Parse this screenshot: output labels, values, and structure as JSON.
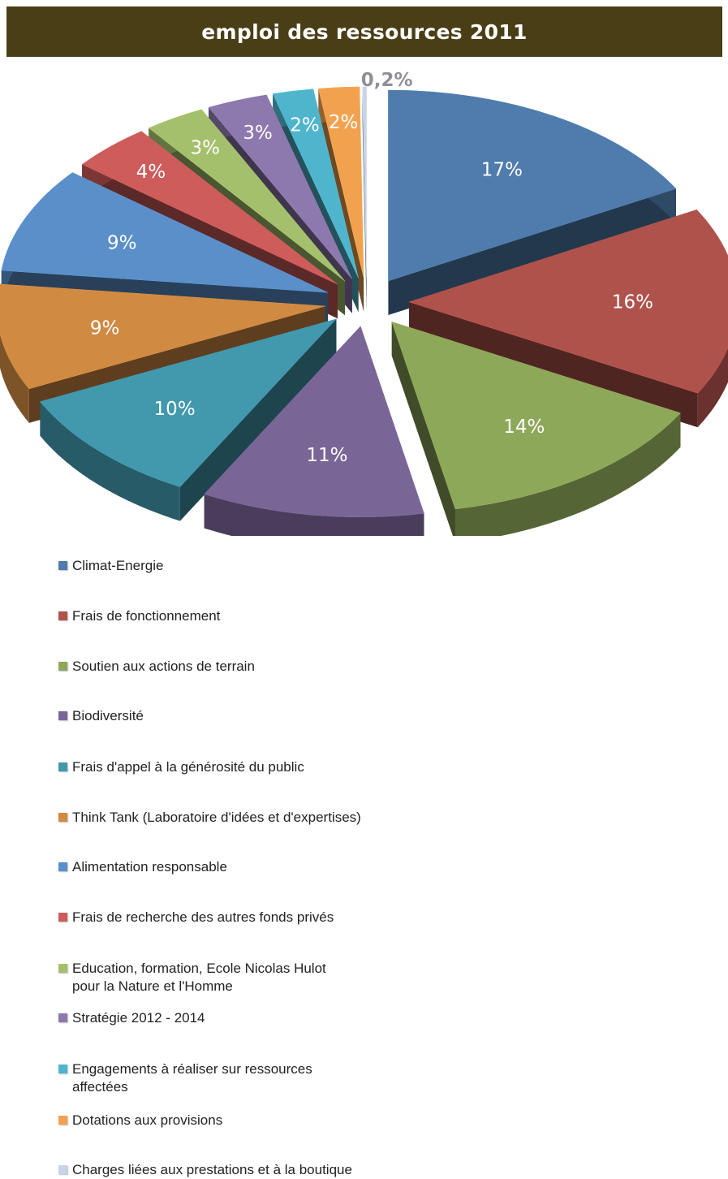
{
  "title": "emploi des ressources 2011",
  "chart_data": {
    "type": "pie",
    "title": "emploi des ressources 2011",
    "slices": [
      {
        "label": "Climat-Energie",
        "value": 17,
        "display": "17%",
        "color": "#4f7cac"
      },
      {
        "label": "Frais de fonctionnement",
        "value": 16,
        "display": "16%",
        "color": "#b0524c"
      },
      {
        "label": "Soutien aux actions de terrain",
        "value": 14,
        "display": "14%",
        "color": "#8ea85a"
      },
      {
        "label": "Biodiversité",
        "value": 11,
        "display": "11%",
        "color": "#7a6597"
      },
      {
        "label": "Frais d'appel à la générosité du public",
        "value": 10,
        "display": "10%",
        "color": "#4298ad"
      },
      {
        "label": "Think Tank (Laboratoire d'idées et d'expertises)",
        "value": 9,
        "display": "9%",
        "color": "#d08a42"
      },
      {
        "label": "Alimentation responsable",
        "value": 9,
        "display": "9%",
        "color": "#5a8fc9"
      },
      {
        "label": "Frais de recherche des autres fonds privés",
        "value": 4,
        "display": "4%",
        "color": "#cd5c5a"
      },
      {
        "label": "Education, formation, Ecole Nicolas Hulot\npour la Nature et l'Homme",
        "value": 3,
        "display": "3%",
        "color": "#a5c06c"
      },
      {
        "label": "Stratégie 2012 - 2014",
        "value": 3,
        "display": "3%",
        "color": "#8d79ad"
      },
      {
        "label": "Engagements à réaliser sur ressources\naffectées",
        "value": 2,
        "display": "2%",
        "color": "#4fb5cd"
      },
      {
        "label": "Dotations aux provisions",
        "value": 2,
        "display": "2%",
        "color": "#f2a24f"
      },
      {
        "label": "Charges liées aux prestations et à la boutique",
        "value": 0.2,
        "display": "0,2%",
        "color": "#c9d3e6"
      }
    ]
  }
}
